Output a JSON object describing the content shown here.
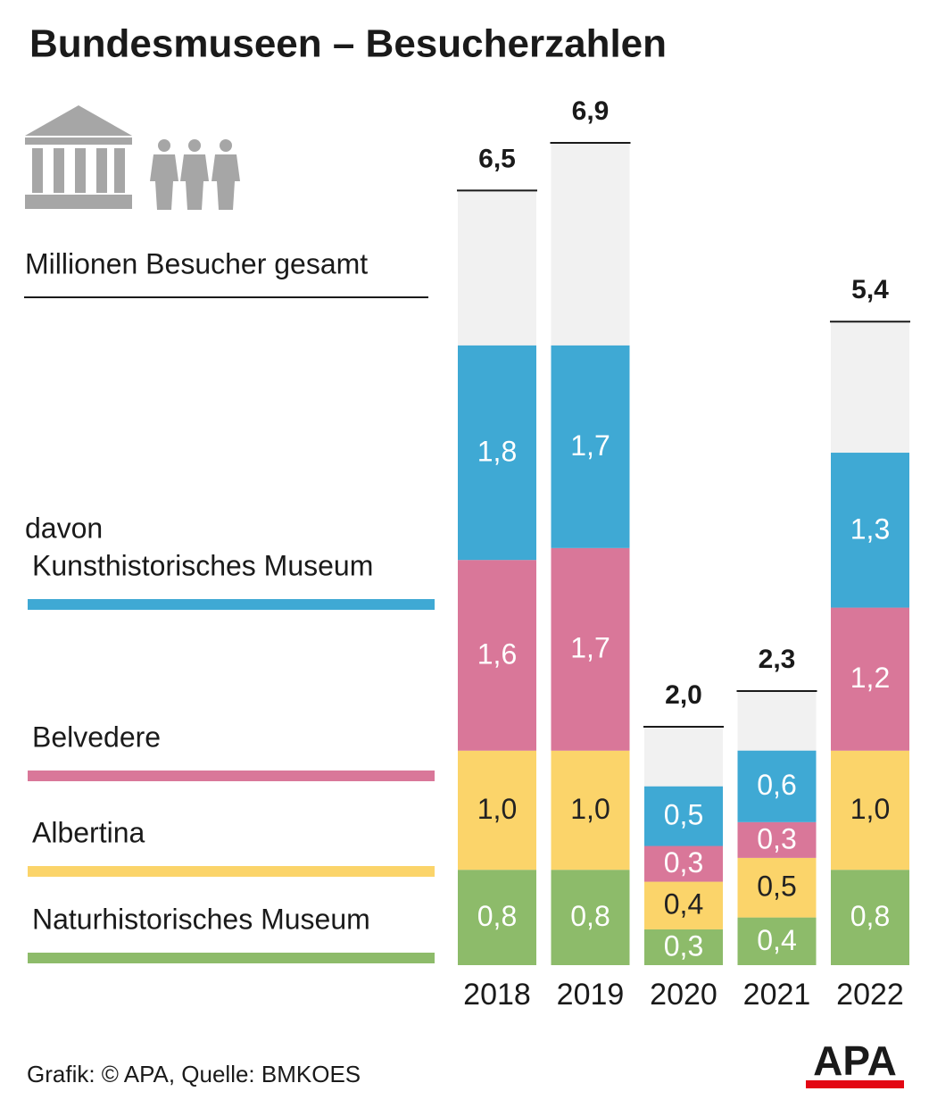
{
  "chart_data": {
    "type": "stacked_bar",
    "title": "Bundesmuseen – Besucherzahlen",
    "categories": [
      "2018",
      "2019",
      "2020",
      "2021",
      "2022"
    ],
    "total": {
      "name": "Millionen Besucher gesamt",
      "color": "#f1f1f1",
      "values": [
        6.5,
        6.9,
        2.0,
        2.3,
        5.4
      ],
      "value_labels": [
        "6,5",
        "6,9",
        "2,0",
        "2,3",
        "5,4"
      ]
    },
    "legend_prefix": "davon",
    "series": [
      {
        "name": "Naturhistorisches Museum",
        "color": "#8dbb6a",
        "label_color": "#ffffff",
        "values": [
          0.8,
          0.8,
          0.3,
          0.4,
          0.8
        ],
        "value_labels": [
          "0,8",
          "0,8",
          "0,3",
          "0,4",
          "0,8"
        ]
      },
      {
        "name": "Albertina",
        "color": "#fbd46a",
        "label_color": "#222222",
        "values": [
          1.0,
          1.0,
          0.4,
          0.5,
          1.0
        ],
        "value_labels": [
          "1,0",
          "1,0",
          "0,4",
          "0,5",
          "1,0"
        ]
      },
      {
        "name": "Belvedere",
        "color": "#d97799",
        "label_color": "#ffffff",
        "values": [
          1.6,
          1.7,
          0.3,
          0.3,
          1.2
        ],
        "value_labels": [
          "1,6",
          "1,7",
          "0,3",
          "0,3",
          "1,2"
        ]
      },
      {
        "name": "Kunsthistorisches Museum",
        "color": "#3fa9d4",
        "label_color": "#ffffff",
        "values": [
          1.8,
          1.7,
          0.5,
          0.6,
          1.3
        ],
        "value_labels": [
          "1,8",
          "1,7",
          "0,5",
          "0,6",
          "1,3"
        ]
      }
    ]
  },
  "footer": {
    "source": "Grafik: © APA, Quelle: BMKOES",
    "logo": "APA"
  }
}
